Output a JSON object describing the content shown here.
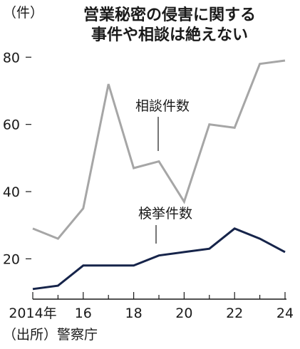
{
  "chart_data": {
    "type": "line",
    "title_lines": [
      "営業秘密の侵害に関する",
      "事件や相談は絶えない"
    ],
    "unit_label": "（件）",
    "x": [
      2014,
      2015,
      2016,
      2017,
      2018,
      2019,
      2020,
      2021,
      2022,
      2023,
      2024
    ],
    "x_tick_labels": [
      "2014年",
      "16",
      "18",
      "20",
      "22",
      "24"
    ],
    "x_tick_values": [
      2014,
      2016,
      2018,
      2020,
      2022,
      2024
    ],
    "xlim": [
      2014,
      2024
    ],
    "ylim": [
      8,
      86
    ],
    "y_ticks": [
      20,
      40,
      60,
      80
    ],
    "y_tick_labels": [
      "20",
      "40",
      "60",
      "80"
    ],
    "grid": false,
    "series": [
      {
        "name": "相談件数",
        "color": "#a6a6a6",
        "values": [
          29,
          26,
          35,
          72,
          47,
          49,
          37,
          60,
          59,
          78,
          79
        ]
      },
      {
        "name": "検挙件数",
        "color": "#16244a",
        "values": [
          11,
          12,
          18,
          18,
          18,
          21,
          22,
          23,
          29,
          26,
          22
        ]
      }
    ],
    "source": "（出所）警察庁"
  }
}
